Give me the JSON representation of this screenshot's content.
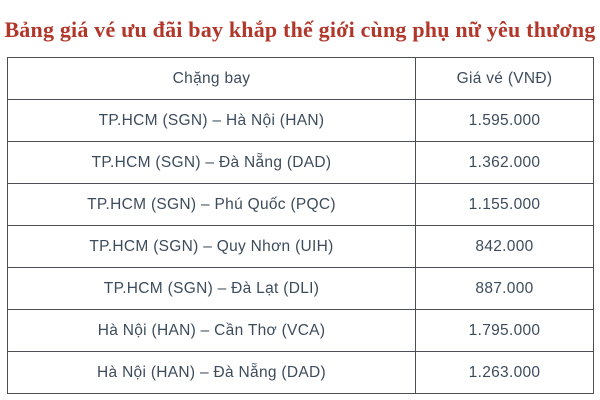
{
  "page": {
    "background": "#ffffff",
    "title": "Bảng giá vé ưu đãi bay khắp thế giới cùng phụ nữ yêu thương",
    "title_color": "#b2372b"
  },
  "table": {
    "headers": [
      "Chặng bay",
      "Giá vé (VNĐ)"
    ],
    "rows": [
      {
        "route": "TP.HCM (SGN) – Hà Nội (HAN)",
        "price": "1.595.000"
      },
      {
        "route": "TP.HCM (SGN) – Đà Nẵng (DAD)",
        "price": "1.362.000"
      },
      {
        "route": "TP.HCM (SGN) – Phú Quốc (PQC)",
        "price": "1.155.000"
      },
      {
        "route": "TP.HCM (SGN) – Quy Nhơn (UIH)",
        "price": "842.000"
      },
      {
        "route": "TP.HCM (SGN) – Đà Lạt (DLI)",
        "price": "887.000"
      },
      {
        "route": "Hà Nội (HAN) – Cần Thơ (VCA)",
        "price": "1.795.000"
      },
      {
        "route": "Hà Nội (HAN) – Đà Nẵng (DAD)",
        "price": "1.263.000"
      }
    ],
    "text_color": "#3d4c5c",
    "border_color": "#4b4e53"
  },
  "chart_data": {
    "type": "table",
    "title": "Bảng giá vé ưu đãi bay khắp thế giới cùng phụ nữ yêu thương",
    "columns": [
      "Chặng bay",
      "Giá vé (VNĐ)"
    ],
    "rows": [
      [
        "TP.HCM (SGN) – Hà Nội (HAN)",
        "1.595.000"
      ],
      [
        "TP.HCM (SGN) – Đà Nẵng (DAD)",
        "1.362.000"
      ],
      [
        "TP.HCM (SGN) – Phú Quốc (PQC)",
        "1.155.000"
      ],
      [
        "TP.HCM (SGN) – Quy Nhơn (UIH)",
        "842.000"
      ],
      [
        "TP.HCM (SGN) – Đà Lạt (DLI)",
        "887.000"
      ],
      [
        "Hà Nội (HAN) – Cần Thơ (VCA)",
        "1.795.000"
      ],
      [
        "Hà Nội (HAN) – Đà Nẵng (DAD)",
        "1.263.000"
      ]
    ],
    "values_vnd": [
      1595000,
      1362000,
      1155000,
      842000,
      887000,
      1795000,
      1263000
    ]
  }
}
